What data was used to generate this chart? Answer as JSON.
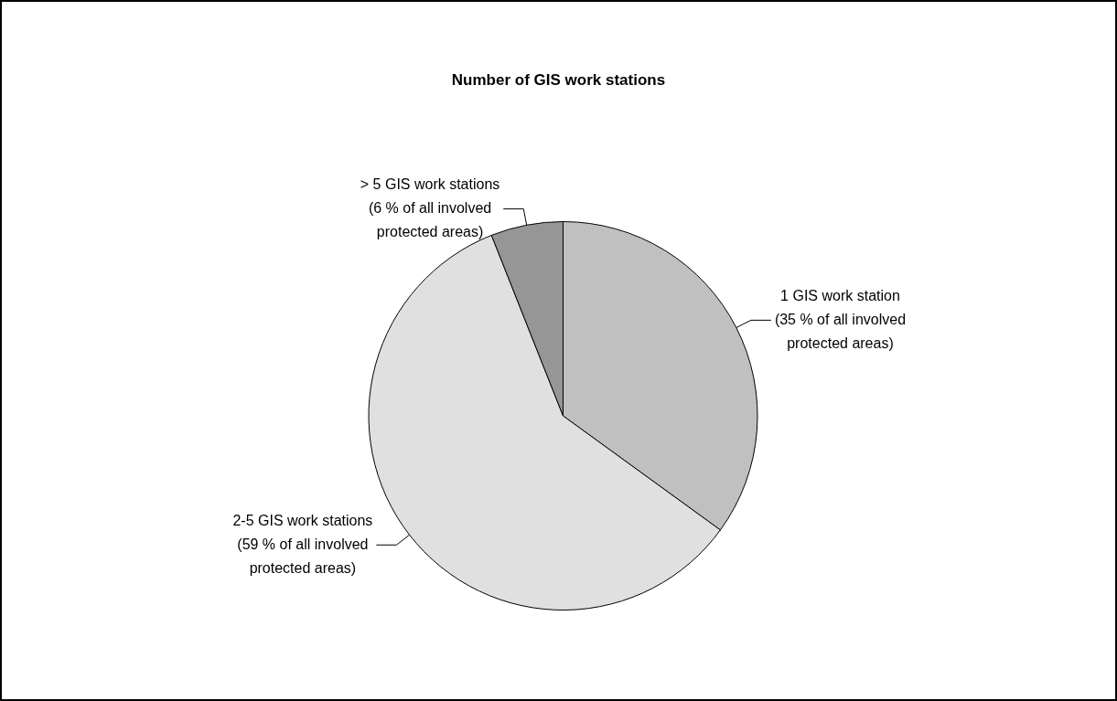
{
  "chart_data": {
    "type": "pie",
    "title": "Number of GIS work stations",
    "categories": [
      "1 GIS work station",
      "2-5 GIS work stations",
      "> 5 GIS work stations"
    ],
    "values": [
      35,
      59,
      6
    ],
    "value_labels": [
      "(35 % of all involved protected areas)",
      "(59 % of all involved protected areas)",
      "(6 % of all involved protected areas)"
    ],
    "colors": [
      "#c0c0c0",
      "#e0e0e0",
      "#969696"
    ],
    "legend": false
  }
}
